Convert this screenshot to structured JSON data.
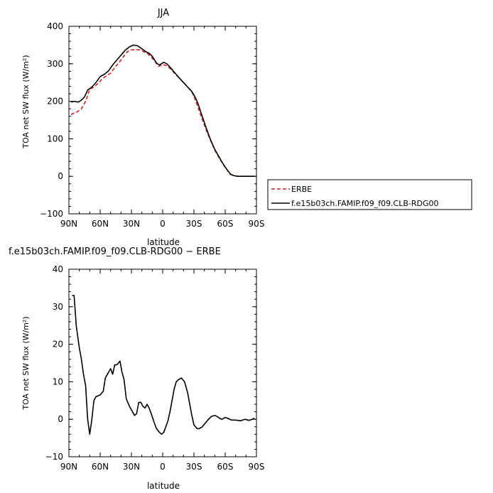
{
  "chart_data": [
    {
      "type": "line",
      "title": "JJA",
      "xlabel": "latitude",
      "ylabel": "TOA net SW flux (W/m²)",
      "ylim": [
        -100,
        400
      ],
      "xlim": [
        90,
        -90
      ],
      "x_ticks": [
        90,
        60,
        30,
        0,
        -30,
        -60,
        -90
      ],
      "x_tick_labels": [
        "90N",
        "60N",
        "30N",
        "0",
        "30S",
        "60S",
        "90S"
      ],
      "y_ticks": [
        -100,
        0,
        100,
        200,
        300,
        400
      ],
      "y_tick_labels": [
        "−100",
        "0",
        "100",
        "200",
        "300",
        "400"
      ],
      "legend_position": "right",
      "series": [
        {
          "name": "ERBE",
          "color": "#d62020",
          "style": "dashed",
          "points": [
            [
              88,
              165
            ],
            [
              82,
              172
            ],
            [
              78,
              180
            ],
            [
              74,
              200
            ],
            [
              70,
              232
            ],
            [
              66,
              238
            ],
            [
              62,
              248
            ],
            [
              58,
              260
            ],
            [
              54,
              268
            ],
            [
              50,
              275
            ],
            [
              46,
              290
            ],
            [
              42,
              303
            ],
            [
              38,
              318
            ],
            [
              34,
              332
            ],
            [
              30,
              337
            ],
            [
              26,
              338
            ],
            [
              22,
              337
            ],
            [
              18,
              332
            ],
            [
              14,
              326
            ],
            [
              11,
              318
            ],
            [
              7,
              305
            ],
            [
              4,
              293
            ],
            [
              0,
              298
            ],
            [
              -4,
              295
            ],
            [
              -8,
              285
            ],
            [
              -12,
              273
            ],
            [
              -16,
              262
            ],
            [
              -20,
              250
            ],
            [
              -24,
              238
            ],
            [
              -28,
              225
            ],
            [
              -31,
              206
            ],
            [
              -34,
              183
            ],
            [
              -38,
              152
            ],
            [
              -42,
              122
            ],
            [
              -46,
              95
            ],
            [
              -50,
              70
            ],
            [
              -54,
              50
            ],
            [
              -58,
              32
            ],
            [
              -62,
              16
            ],
            [
              -65,
              5
            ],
            [
              -68,
              2
            ],
            [
              -72,
              0
            ],
            [
              -76,
              0
            ],
            [
              -82,
              0
            ],
            [
              -88,
              0
            ]
          ]
        },
        {
          "name": "f.e15b03ch.FAMIP.f09_f09.CLB-RDG00",
          "color": "#000000",
          "style": "solid",
          "points": [
            [
              88,
              198
            ],
            [
              85,
              200
            ],
            [
              81,
              198
            ],
            [
              78,
              203
            ],
            [
              75,
              212
            ],
            [
              72,
              230
            ],
            [
              68,
              238
            ],
            [
              64,
              250
            ],
            [
              60,
              266
            ],
            [
              56,
              272
            ],
            [
              52,
              281
            ],
            [
              48,
              297
            ],
            [
              44,
              310
            ],
            [
              40,
              323
            ],
            [
              36,
              336
            ],
            [
              32,
              345
            ],
            [
              28,
              350
            ],
            [
              24,
              348
            ],
            [
              20,
              340
            ],
            [
              16,
              332
            ],
            [
              13,
              328
            ],
            [
              10,
              320
            ],
            [
              6,
              302
            ],
            [
              3,
              297
            ],
            [
              -1,
              304
            ],
            [
              -4,
              300
            ],
            [
              -8,
              288
            ],
            [
              -12,
              275
            ],
            [
              -16,
              262
            ],
            [
              -20,
              250
            ],
            [
              -24,
              238
            ],
            [
              -28,
              226
            ],
            [
              -31,
              212
            ],
            [
              -34,
              193
            ],
            [
              -38,
              160
            ],
            [
              -42,
              127
            ],
            [
              -46,
              97
            ],
            [
              -50,
              72
            ],
            [
              -54,
              52
            ],
            [
              -58,
              33
            ],
            [
              -62,
              17
            ],
            [
              -65,
              6
            ],
            [
              -68,
              2
            ],
            [
              -72,
              0
            ],
            [
              -76,
              0
            ],
            [
              -82,
              0
            ],
            [
              -88,
              0
            ]
          ]
        }
      ]
    },
    {
      "type": "line",
      "title": "f.e15b03ch.FAMIP.f09_f09.CLB-RDG00 − ERBE",
      "xlabel": "latitude",
      "ylabel": "TOA net SW flux (W/m²)",
      "ylim": [
        -10,
        40
      ],
      "xlim": [
        90,
        -90
      ],
      "x_ticks": [
        90,
        60,
        30,
        0,
        -30,
        -60,
        -90
      ],
      "x_tick_labels": [
        "90N",
        "60N",
        "30N",
        "0",
        "30S",
        "60S",
        "90S"
      ],
      "y_ticks": [
        -10,
        0,
        10,
        20,
        30,
        40
      ],
      "y_tick_labels": [
        "−10",
        "0",
        "10",
        "20",
        "30",
        "40"
      ],
      "series": [
        {
          "color": "#000000",
          "style": "solid",
          "points": [
            [
              87,
              33
            ],
            [
              85,
              33
            ],
            [
              83,
              25
            ],
            [
              80,
              19
            ],
            [
              78,
              16
            ],
            [
              76,
              12
            ],
            [
              74,
              9
            ],
            [
              72,
              0
            ],
            [
              70,
              -4
            ],
            [
              68,
              0
            ],
            [
              66,
              5
            ],
            [
              64,
              6
            ],
            [
              60,
              6.5
            ],
            [
              57,
              7.5
            ],
            [
              55,
              11
            ],
            [
              52,
              12.5
            ],
            [
              50,
              13.5
            ],
            [
              48,
              12
            ],
            [
              46,
              14.5
            ],
            [
              44,
              14.5
            ],
            [
              41,
              15.5
            ],
            [
              39,
              12.5
            ],
            [
              37,
              10.5
            ],
            [
              35,
              5.5
            ],
            [
              32,
              3.5
            ],
            [
              29,
              2
            ],
            [
              27,
              1
            ],
            [
              25,
              1.5
            ],
            [
              23,
              4.5
            ],
            [
              21,
              4.5
            ],
            [
              19,
              3.5
            ],
            [
              17,
              3
            ],
            [
              15,
              4
            ],
            [
              13,
              3
            ],
            [
              11,
              1.5
            ],
            [
              8,
              -1
            ],
            [
              6,
              -2.5
            ],
            [
              3,
              -3.5
            ],
            [
              1,
              -4
            ],
            [
              -1,
              -3.5
            ],
            [
              -3,
              -2
            ],
            [
              -5,
              -0.5
            ],
            [
              -7,
              2
            ],
            [
              -9,
              5
            ],
            [
              -11,
              8
            ],
            [
              -13,
              10
            ],
            [
              -15,
              10.5
            ],
            [
              -18,
              11
            ],
            [
              -21,
              10
            ],
            [
              -24,
              7
            ],
            [
              -26,
              4
            ],
            [
              -28,
              1
            ],
            [
              -30,
              -1.5
            ],
            [
              -33,
              -2.5
            ],
            [
              -35,
              -2.5
            ],
            [
              -38,
              -2
            ],
            [
              -41,
              -1
            ],
            [
              -44,
              0
            ],
            [
              -47,
              0.8
            ],
            [
              -50,
              1
            ],
            [
              -52,
              0.8
            ],
            [
              -55,
              0.2
            ],
            [
              -57,
              0
            ],
            [
              -60,
              0.5
            ],
            [
              -63,
              0.2
            ],
            [
              -66,
              -0.2
            ],
            [
              -70,
              -0.2
            ],
            [
              -75,
              -0.4
            ],
            [
              -79,
              0
            ],
            [
              -83,
              -0.3
            ],
            [
              -86,
              0
            ],
            [
              -88,
              0.3
            ]
          ]
        }
      ]
    }
  ]
}
